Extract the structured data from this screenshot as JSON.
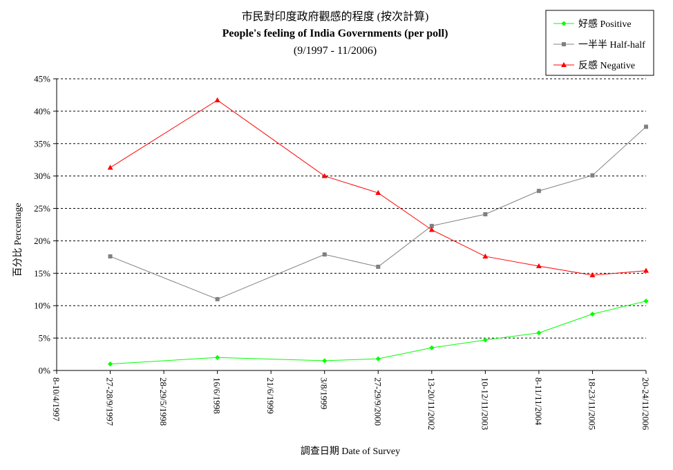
{
  "chart_data": {
    "type": "line",
    "title_zh": "市民對印度政府觀感的程度 (按次計算)",
    "title_en": "People's feeling of India Governments (per poll)",
    "title_range": "(9/1997 - 11/2006)",
    "xlabel": "調查日期 Date of Survey",
    "ylabel": "百分比 Percentage",
    "ylim": [
      0,
      45
    ],
    "yticks": [
      "0%",
      "5%",
      "10%",
      "15%",
      "20%",
      "25%",
      "30%",
      "35%",
      "40%",
      "45%"
    ],
    "categories": [
      "8-10/4/1997",
      "27-28/9/1997",
      "28-29/5/1998",
      "16/6/1998",
      "21/6/1999",
      "3/8/1999",
      "27-29/9/2000",
      "13-20/11/2002",
      "10-12/11/2003",
      "8-11/11/2004",
      "18-23/11/2005",
      "20-24/11/2006"
    ],
    "grid": true,
    "legend_position": "top-right",
    "series": [
      {
        "name": "好感 Positive",
        "color": "#00ff00",
        "marker": "diamond",
        "values": [
          null,
          1.0,
          null,
          2.0,
          null,
          1.5,
          1.8,
          3.5,
          4.7,
          5.8,
          8.7,
          10.7
        ]
      },
      {
        "name": "一半半 Half-half",
        "color": "#808080",
        "marker": "square",
        "values": [
          null,
          17.6,
          null,
          11.0,
          null,
          17.9,
          16.0,
          22.3,
          24.1,
          27.7,
          30.1,
          37.6
        ]
      },
      {
        "name": "反感 Negative",
        "color": "#ff0000",
        "marker": "triangle",
        "values": [
          null,
          31.3,
          null,
          41.7,
          null,
          30.0,
          27.4,
          21.7,
          17.6,
          16.1,
          14.7,
          15.4
        ]
      }
    ]
  }
}
